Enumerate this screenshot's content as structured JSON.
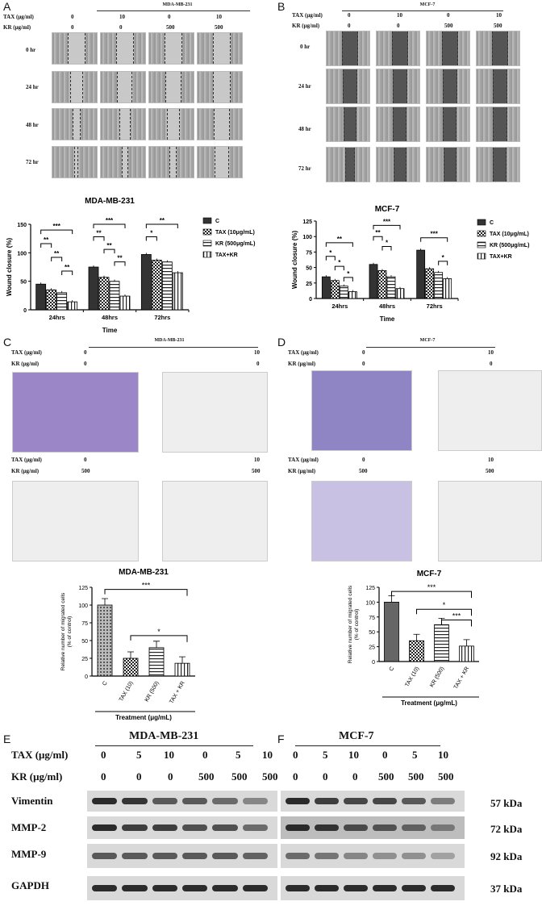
{
  "panels": {
    "A": {
      "letter": "A",
      "cell_line": "MDA-MB-231",
      "tax_label": "TAX (μg/ml)",
      "kr_label": "KR (μg/ml)",
      "tax": [
        "0",
        "10",
        "0",
        "10"
      ],
      "kr": [
        "0",
        "0",
        "500",
        "500"
      ],
      "times": [
        "0 hr",
        "24 hr",
        "48 hr",
        "72 hr"
      ]
    },
    "B": {
      "letter": "B",
      "cell_line": "MCF-7",
      "tax_label": "TAX (μg/ml)",
      "kr_label": "KR (μg/ml)",
      "tax": [
        "0",
        "10",
        "0",
        "10"
      ],
      "kr": [
        "0",
        "0",
        "500",
        "500"
      ],
      "times": [
        "0 hr",
        "24 hr",
        "48 hr",
        "72 hr"
      ]
    },
    "C": {
      "letter": "C",
      "cell_line": "MDA-MB-231",
      "tax_label": "TAX (μg/ml)",
      "kr_label": "KR (μg/ml)",
      "row1": {
        "tax": [
          "0",
          "10"
        ],
        "kr": [
          "0",
          "0"
        ]
      },
      "row2": {
        "tax": [
          "0",
          "10"
        ],
        "kr": [
          "500",
          "500"
        ]
      }
    },
    "D": {
      "letter": "D",
      "cell_line": "MCF-7",
      "tax_label": "TAX (μg/ml)",
      "kr_label": "KR (μg/ml)",
      "row1": {
        "tax": [
          "0",
          "10"
        ],
        "kr": [
          "0",
          "0"
        ]
      },
      "row2": {
        "tax": [
          "0",
          "10"
        ],
        "kr": [
          "500",
          "500"
        ]
      }
    },
    "E": {
      "letter": "E",
      "cell_line": "MDA-MB-231"
    },
    "F": {
      "letter": "F",
      "cell_line": "MCF-7"
    }
  },
  "blot": {
    "tax_label": "TAX (μg/ml)",
    "kr_label": "KR (μg/ml)",
    "tax": [
      "0",
      "5",
      "10",
      "0",
      "5",
      "10"
    ],
    "kr": [
      "0",
      "0",
      "0",
      "500",
      "500",
      "500"
    ],
    "proteins": [
      {
        "name": "Vimentin",
        "kda": "57 kDa"
      },
      {
        "name": "MMP-2",
        "kda": "72 kDa"
      },
      {
        "name": "MMP-9",
        "kda": "92 kDa"
      },
      {
        "name": "GAPDH",
        "kda": "37 kDa"
      }
    ]
  },
  "chart_data": [
    {
      "type": "bar",
      "title": "MDA-MB-231",
      "xlabel": "Time",
      "ylabel": "Wound closure (%)",
      "ylim": [
        0,
        150
      ],
      "yticks": [
        "0",
        "50",
        "100",
        "150"
      ],
      "categories": [
        "24hrs",
        "48hrs",
        "72hrs"
      ],
      "series": [
        {
          "name": "C",
          "values": [
            45,
            75,
            97
          ]
        },
        {
          "name": "TAX (10μg/mL)",
          "values": [
            35,
            57,
            87
          ]
        },
        {
          "name": "KR (500μg/mL)",
          "values": [
            30,
            50,
            84
          ]
        },
        {
          "name": "TAX+KR",
          "values": [
            14,
            24,
            65
          ]
        }
      ],
      "significance": [
        "***",
        "**",
        "**",
        "**",
        "***",
        "**",
        "**",
        "**",
        "**",
        "*"
      ]
    },
    {
      "type": "bar",
      "title": "MCF-7",
      "xlabel": "Time",
      "ylabel": "Wound closure (%)",
      "ylim": [
        0,
        125
      ],
      "yticks": [
        "0",
        "25",
        "50",
        "75",
        "100",
        "125"
      ],
      "categories": [
        "24hrs",
        "48hrs",
        "72hrs"
      ],
      "series": [
        {
          "name": "C",
          "values": [
            35,
            55,
            78
          ]
        },
        {
          "name": "TAX (10μg/mL)",
          "values": [
            29,
            45,
            48
          ]
        },
        {
          "name": "KR (500μg/mL)",
          "values": [
            20,
            35,
            42
          ]
        },
        {
          "name": "TAX+KR",
          "values": [
            11,
            16,
            32
          ]
        }
      ],
      "significance": [
        "**",
        "*",
        "*",
        "*",
        "***",
        "**",
        "*",
        "***",
        "*"
      ]
    },
    {
      "type": "bar",
      "title": "MDA-MB-231",
      "xlabel": "Treatment (μg/mL)",
      "ylabel": "Relative number of migrated cells (% of control)",
      "ylim": [
        0,
        125
      ],
      "yticks": [
        "0",
        "25",
        "50",
        "75",
        "100",
        "125"
      ],
      "categories": [
        "C",
        "TAX (10)",
        "KR (500)",
        "TAX + KR"
      ],
      "values": [
        100,
        25,
        40,
        18
      ],
      "significance": [
        "***",
        "*"
      ]
    },
    {
      "type": "bar",
      "title": "MCF-7",
      "xlabel": "Treatment (μg/mL)",
      "ylabel": "Relative number of migrated cells (% of control)",
      "ylim": [
        0,
        125
      ],
      "yticks": [
        "0",
        "25",
        "50",
        "75",
        "100",
        "125"
      ],
      "categories": [
        "C",
        "TAX (10)",
        "KR (500)",
        "TAX + KR"
      ],
      "values": [
        100,
        35,
        62,
        26
      ],
      "significance": [
        "***",
        "*",
        "***"
      ]
    }
  ]
}
